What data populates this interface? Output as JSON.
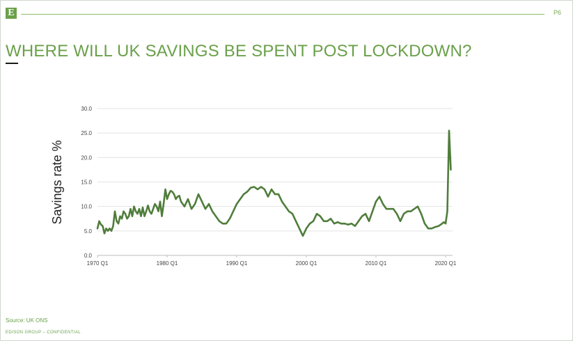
{
  "slide": {
    "page_number": "P6",
    "title": "WHERE WILL UK SAVINGS BE SPENT POST LOCKDOWN?",
    "source": "Source: UK ONS",
    "footer": "EDISON GROUP – CONFIDENTIAL",
    "logo_letter": "E"
  },
  "colors": {
    "accent": "#6aa04a",
    "line": "#4f7d3b",
    "grid": "#e3e3e3"
  },
  "chart_data": {
    "type": "line",
    "title": "",
    "xlabel": "",
    "ylabel": "Savings rate %",
    "ylim": [
      0,
      30
    ],
    "yticks": [
      "0.0",
      "5.0",
      "10.0",
      "15.0",
      "20.0",
      "25.0",
      "30.0"
    ],
    "xlim": [
      1970.0,
      2021.0
    ],
    "xticks": [
      {
        "x": 1970.0,
        "label": "1970 Q1"
      },
      {
        "x": 1980.0,
        "label": "1980 Q1"
      },
      {
        "x": 1990.0,
        "label": "1990 Q1"
      },
      {
        "x": 2000.0,
        "label": "2000 Q1"
      },
      {
        "x": 2010.0,
        "label": "2010 Q1"
      },
      {
        "x": 2020.0,
        "label": "2020 Q1"
      }
    ],
    "grid": true,
    "series": [
      {
        "x": [
          1970.0,
          1970.25,
          1970.5,
          1970.75,
          1971.0,
          1971.25,
          1971.5,
          1971.75,
          1972.0,
          1972.25,
          1972.5,
          1972.75,
          1973.0,
          1973.25,
          1973.5,
          1973.75,
          1974.0,
          1974.25,
          1974.5,
          1974.75,
          1975.0,
          1975.25,
          1975.5,
          1975.75,
          1976.0,
          1976.25,
          1976.5,
          1976.75,
          1977.0,
          1977.25,
          1977.5,
          1977.75,
          1978.0,
          1978.25,
          1978.5,
          1978.75,
          1979.0,
          1979.25,
          1979.5,
          1979.75,
          1980.0,
          1980.25,
          1980.5,
          1980.75,
          1981.0,
          1981.25,
          1981.5,
          1981.75,
          1982.0,
          1982.5,
          1983.0,
          1983.5,
          1984.0,
          1984.5,
          1985.0,
          1985.5,
          1986.0,
          1986.5,
          1987.0,
          1987.5,
          1988.0,
          1988.5,
          1989.0,
          1989.5,
          1990.0,
          1990.5,
          1991.0,
          1991.5,
          1992.0,
          1992.5,
          1993.0,
          1993.5,
          1994.0,
          1994.5,
          1995.0,
          1995.5,
          1996.0,
          1996.5,
          1997.0,
          1997.5,
          1998.0,
          1998.5,
          1999.0,
          1999.5,
          2000.0,
          2000.5,
          2001.0,
          2001.5,
          2002.0,
          2002.5,
          2003.0,
          2003.5,
          2004.0,
          2004.5,
          2005.0,
          2005.5,
          2006.0,
          2006.5,
          2007.0,
          2007.5,
          2008.0,
          2008.5,
          2009.0,
          2009.5,
          2010.0,
          2010.5,
          2011.0,
          2011.5,
          2012.0,
          2012.5,
          2013.0,
          2013.5,
          2014.0,
          2014.5,
          2015.0,
          2015.5,
          2016.0,
          2016.5,
          2017.0,
          2017.5,
          2018.0,
          2018.5,
          2019.0,
          2019.5,
          2019.75,
          2020.0,
          2020.25,
          2020.5,
          2020.75
        ],
        "values": [
          5.5,
          7.0,
          6.3,
          6.0,
          4.5,
          5.5,
          5.0,
          5.5,
          5.0,
          6.0,
          9.0,
          7.0,
          6.5,
          8.0,
          7.5,
          9.0,
          8.5,
          7.5,
          8.0,
          9.5,
          8.0,
          10.0,
          9.0,
          8.5,
          9.5,
          8.0,
          9.8,
          8.0,
          9.0,
          10.2,
          9.0,
          8.5,
          9.5,
          10.5,
          10.0,
          9.0,
          11.0,
          8.0,
          10.5,
          13.5,
          11.5,
          12.5,
          13.2,
          13.0,
          12.5,
          11.5,
          12.0,
          12.2,
          11.0,
          10.0,
          11.5,
          9.5,
          10.5,
          12.5,
          11.0,
          9.5,
          10.5,
          9.0,
          8.0,
          7.0,
          6.5,
          6.5,
          7.5,
          9.0,
          10.5,
          11.5,
          12.5,
          13.0,
          13.8,
          14.0,
          13.5,
          14.0,
          13.5,
          12.0,
          13.5,
          12.5,
          12.5,
          11.0,
          10.0,
          9.0,
          8.5,
          7.0,
          5.5,
          4.0,
          5.5,
          6.5,
          7.0,
          8.5,
          8.0,
          7.0,
          7.0,
          7.5,
          6.5,
          6.8,
          6.5,
          6.5,
          6.3,
          6.5,
          6.0,
          7.0,
          8.0,
          8.5,
          7.0,
          9.0,
          11.0,
          12.0,
          10.5,
          9.5,
          9.5,
          9.5,
          8.5,
          7.0,
          8.5,
          9.0,
          9.0,
          9.5,
          10.0,
          8.5,
          6.5,
          5.5,
          5.5,
          5.8,
          6.0,
          6.5,
          6.8,
          6.5,
          9.0,
          25.5,
          17.5
        ]
      }
    ]
  }
}
